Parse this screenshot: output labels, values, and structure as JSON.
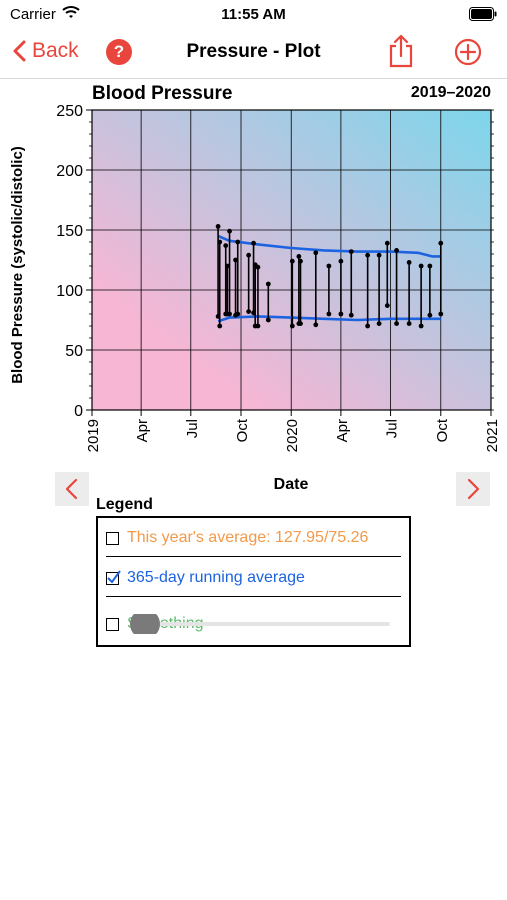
{
  "status_bar": {
    "carrier": "Carrier",
    "time": "11:55 AM"
  },
  "navbar": {
    "back_label": "Back",
    "help_label": "?",
    "title": "Pressure - Plot"
  },
  "chart_data": {
    "type": "line",
    "title": "Blood Pressure",
    "range_label": "2019–2020",
    "xlabel": "Date",
    "ylabel": "Blood Pressure (systolic/distolic)",
    "ylim": [
      0,
      250
    ],
    "xlim": [
      "2019-01-01",
      "2021-01-01"
    ],
    "y_ticks": [
      "0",
      "50",
      "100",
      "150",
      "200",
      "250"
    ],
    "x_tick_labels": [
      "2019",
      "Apr",
      "Jul",
      "Oct",
      "2020",
      "Apr",
      "Jul",
      "Oct",
      "2021"
    ],
    "x_tick_dates": [
      "2019-01-01",
      "2019-04-01",
      "2019-07-01",
      "2019-10-01",
      "2020-01-01",
      "2020-04-01",
      "2020-07-01",
      "2020-10-01",
      "2021-01-01"
    ],
    "grid": true,
    "readings": [
      {
        "date": "2019-08-20",
        "systolic": 153,
        "diastolic": 78
      },
      {
        "date": "2019-08-23",
        "systolic": 140,
        "diastolic": 70
      },
      {
        "date": "2019-09-03",
        "systolic": 137,
        "diastolic": 80
      },
      {
        "date": "2019-09-06",
        "systolic": 120,
        "diastolic": 80
      },
      {
        "date": "2019-09-10",
        "systolic": 149,
        "diastolic": 80
      },
      {
        "date": "2019-09-21",
        "systolic": 125,
        "diastolic": 79
      },
      {
        "date": "2019-09-25",
        "systolic": 140,
        "diastolic": 80
      },
      {
        "date": "2019-10-15",
        "systolic": 129,
        "diastolic": 82
      },
      {
        "date": "2019-10-24",
        "systolic": 139,
        "diastolic": 81
      },
      {
        "date": "2019-10-27",
        "systolic": 121,
        "diastolic": 70
      },
      {
        "date": "2019-11-01",
        "systolic": 119,
        "diastolic": 70
      },
      {
        "date": "2019-11-20",
        "systolic": 105,
        "diastolic": 75
      },
      {
        "date": "2020-01-03",
        "systolic": 124,
        "diastolic": 70
      },
      {
        "date": "2020-01-15",
        "systolic": 128,
        "diastolic": 72
      },
      {
        "date": "2020-01-18",
        "systolic": 124,
        "diastolic": 72
      },
      {
        "date": "2020-02-15",
        "systolic": 131,
        "diastolic": 71
      },
      {
        "date": "2020-03-10",
        "systolic": 120,
        "diastolic": 80
      },
      {
        "date": "2020-04-01",
        "systolic": 124,
        "diastolic": 80
      },
      {
        "date": "2020-04-20",
        "systolic": 132,
        "diastolic": 79
      },
      {
        "date": "2020-05-20",
        "systolic": 129,
        "diastolic": 70
      },
      {
        "date": "2020-06-10",
        "systolic": 129,
        "diastolic": 72
      },
      {
        "date": "2020-06-25",
        "systolic": 139,
        "diastolic": 87
      },
      {
        "date": "2020-07-12",
        "systolic": 133,
        "diastolic": 72
      },
      {
        "date": "2020-08-04",
        "systolic": 123,
        "diastolic": 72
      },
      {
        "date": "2020-08-26",
        "systolic": 120,
        "diastolic": 70
      },
      {
        "date": "2020-09-11",
        "systolic": 120,
        "diastolic": 79
      },
      {
        "date": "2020-10-01",
        "systolic": 139,
        "diastolic": 80
      }
    ],
    "series": [
      {
        "values": [
          [
            "2019-08-20",
            145
          ],
          [
            "2019-09-10",
            141
          ],
          [
            "2019-11-01",
            138
          ],
          [
            "2020-01-01",
            135
          ],
          [
            "2020-03-01",
            133
          ],
          [
            "2020-05-01",
            132
          ],
          [
            "2020-07-01",
            132
          ],
          [
            "2020-08-20",
            131
          ],
          [
            "2020-09-15",
            128
          ],
          [
            "2020-10-01",
            128
          ]
        ]
      },
      {
        "values": [
          [
            "2019-08-20",
            74
          ],
          [
            "2019-09-10",
            77
          ],
          [
            "2019-11-01",
            78
          ],
          [
            "2020-01-01",
            77
          ],
          [
            "2020-03-01",
            76
          ],
          [
            "2020-05-01",
            75
          ],
          [
            "2020-07-01",
            76
          ],
          [
            "2020-08-20",
            76
          ],
          [
            "2020-10-01",
            76
          ]
        ]
      }
    ],
    "colors": {
      "readings": "#000000",
      "running_average": "#1c63e0",
      "bg_top_right": "#7dd6ec",
      "bg_bottom_left": "#f7b6d4"
    }
  },
  "legend": {
    "title": "Legend",
    "items": [
      {
        "label": "This year's average: 127.95/75.26",
        "checked": false,
        "color": "#f2994a"
      },
      {
        "label": "365-day running average",
        "checked": true,
        "color": "#1c63e0"
      },
      {
        "label": "Smoothing",
        "checked": false,
        "color": "#5cba6c"
      }
    ],
    "smoothing_level": 0
  },
  "colors": {
    "accent": "#e8453c"
  }
}
